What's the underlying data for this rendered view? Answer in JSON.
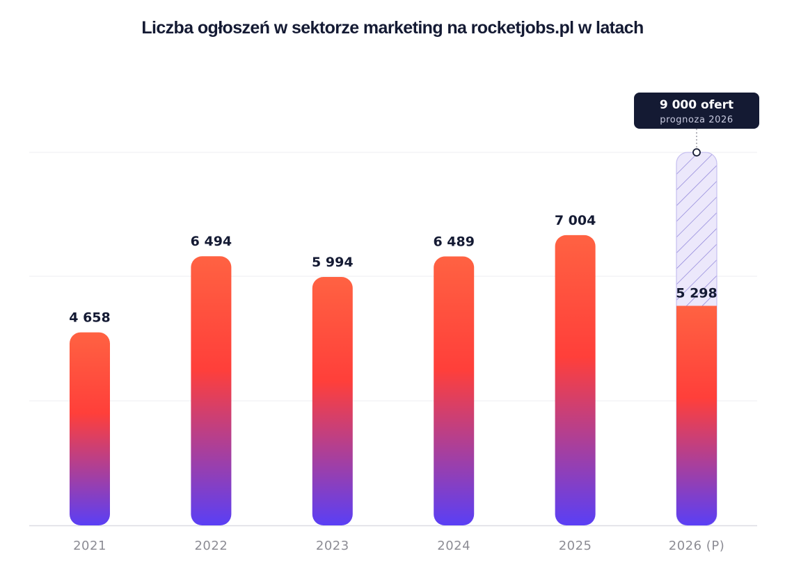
{
  "chart_data": {
    "type": "bar",
    "title": "Liczba ogłoszeń w sektorze marketing na rocketjobs.pl w latach",
    "categories": [
      "2021",
      "2022",
      "2023",
      "2024",
      "2025",
      "2026 (P)"
    ],
    "values": [
      4658,
      6494,
      5994,
      6489,
      7004,
      5298
    ],
    "value_labels": [
      "4 658",
      "6 494",
      "5 994",
      "6 489",
      "7 004",
      "5 298"
    ],
    "forecast": {
      "category": "2026 (P)",
      "value": 9000,
      "label_main": "9 000 ofert",
      "label_sub": "prognoza 2026"
    },
    "ylim": [
      0,
      9000
    ],
    "grid": true,
    "colors": {
      "bar_top": "#ff6242",
      "bar_mid": "#ff3f3a",
      "bar_bottom": "#5a3ff5",
      "forecast_fill": "#ece8fb",
      "forecast_hatch": "#8a7fd8",
      "forecast_stroke": "#c6bff0",
      "callout_bg": "#141a33",
      "gridline": "#ececf0",
      "axis": "#dcdce2"
    }
  }
}
